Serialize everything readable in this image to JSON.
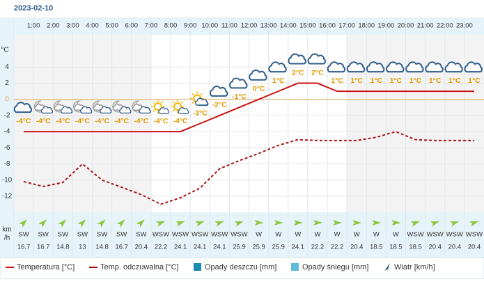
{
  "chart_data": {
    "type": "line",
    "title": "2023-02-10",
    "y_label": "°C",
    "categories": [
      null,
      "1:00",
      "2:00",
      "3:00",
      "4:00",
      "5:00",
      "6:00",
      "7:00",
      "8:00",
      "9:00",
      "10:00",
      "11:00",
      "12:00",
      "13:00",
      "14:00",
      "15:00",
      "16:00",
      "17:00",
      "18:00",
      "19:00",
      "20:00",
      "21:00",
      "22:00",
      "23:00"
    ],
    "ylim": [
      -14,
      8
    ],
    "yticks": [
      4,
      2,
      0,
      -2,
      -4,
      -6,
      -8,
      -10,
      -12
    ],
    "zero_line_color": "#e0a060",
    "series": [
      {
        "name": "Temperatura [°C]",
        "color": "#cc1111",
        "dash": false,
        "values": [
          -4,
          -4,
          -4,
          -4,
          -4,
          -4,
          -4,
          -4,
          -4,
          -3,
          -2,
          -1,
          0,
          1,
          2,
          2,
          1,
          1,
          1,
          1,
          1,
          1,
          1,
          1
        ],
        "value_labels": [
          "-4°C",
          "-4°C",
          "-4°C",
          "-4°C",
          "-4°C",
          "-4°C",
          "-4°C",
          "-4°C",
          "-4°C",
          "-3°C",
          "-2°C",
          "-1°C",
          "0°C",
          "1°C",
          "2°C",
          "2°C",
          "1°C",
          "1°C",
          "1°C",
          "1°C",
          "1°C",
          "1°C",
          "1°C",
          "1°C"
        ]
      },
      {
        "name": "Temp. odczuwalna [°C]",
        "color": "#aa1111",
        "dash": true,
        "values": [
          -10.2,
          -10.8,
          -10.3,
          -8,
          -10,
          -10.9,
          -11.8,
          -13,
          -12.2,
          -11,
          -8.6,
          -7.6,
          -6.7,
          -5.7,
          -5,
          -5.1,
          -5.1,
          -5.1,
          -4.7,
          -4,
          -5,
          -5.1,
          -5.1,
          -5.1
        ]
      }
    ],
    "legend_extra": [
      {
        "name": "Opady deszczu [mm]",
        "color": "#1a8ab0"
      },
      {
        "name": "Opady śniegu [mm]",
        "color": "#5bbbd8"
      }
    ],
    "wind": {
      "name": "Wiatr [km/h]",
      "unit_lines": [
        "km",
        "/h"
      ],
      "color": "#8dc63f",
      "directions": [
        "SW",
        "SW",
        "SW",
        "SW",
        "SW",
        "SW",
        "SW",
        "WSW",
        "WSW",
        "WSW",
        "WSW",
        "WSW",
        "W",
        "W",
        "W",
        "W",
        "W",
        "W",
        "W",
        "W",
        "WSW",
        "WSW",
        "WSW",
        "WSW"
      ],
      "speeds": [
        16.7,
        16.7,
        14.8,
        13,
        14.8,
        16.7,
        20.4,
        22.2,
        24.1,
        24.1,
        24.1,
        25.9,
        25.9,
        25.9,
        24.1,
        22.2,
        22.2,
        20.4,
        18.5,
        18.5,
        18.5,
        20.4,
        20.4,
        20.4
      ]
    }
  }
}
